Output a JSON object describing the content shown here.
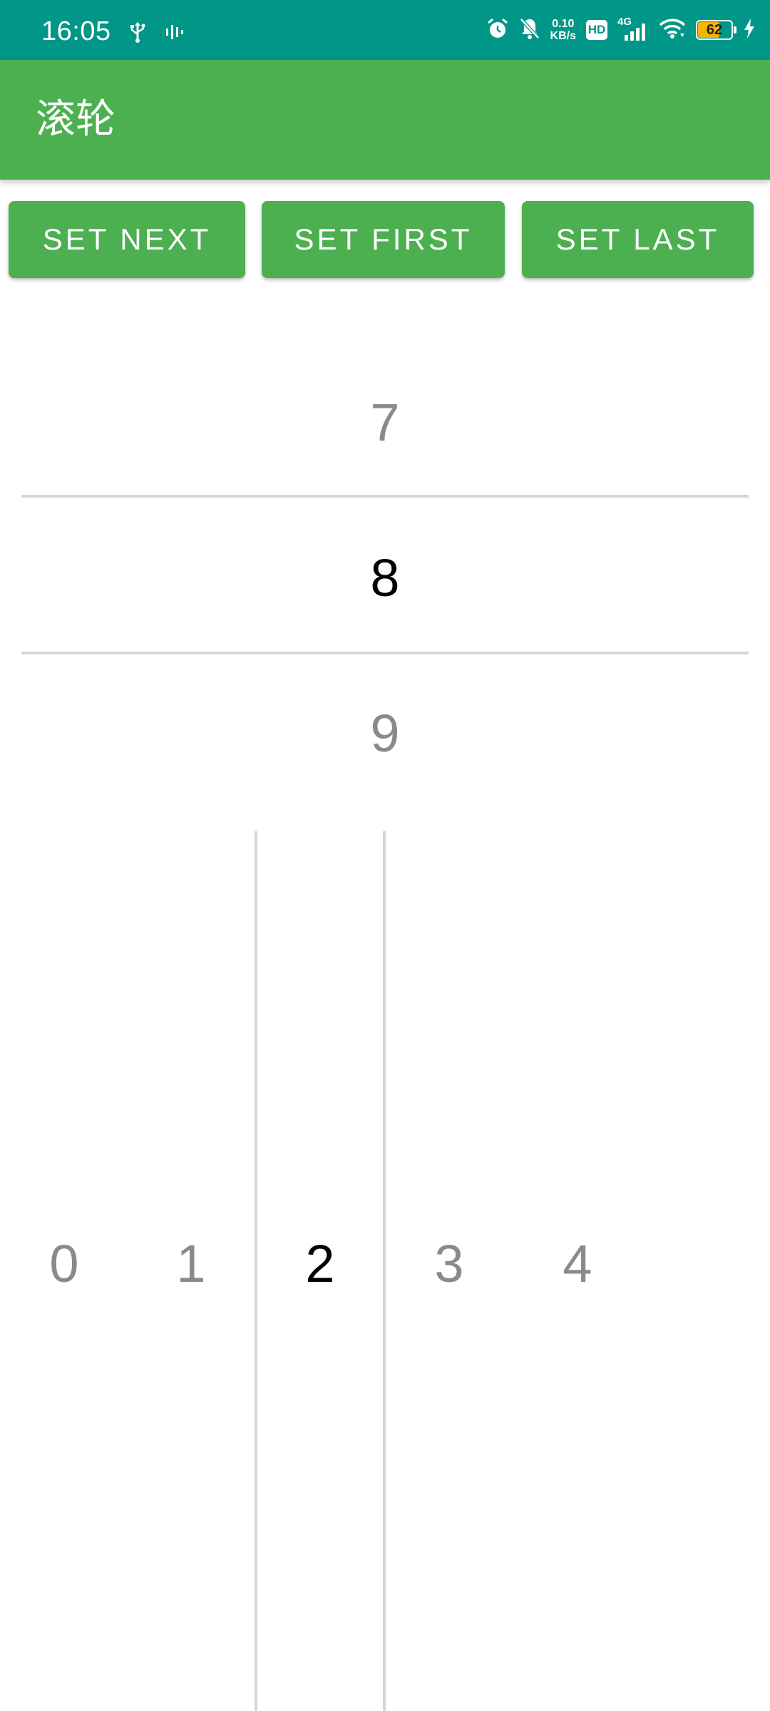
{
  "status_bar": {
    "time": "16:05",
    "net_speed_value": "0.10",
    "net_speed_unit": "KB/s",
    "hd_label": "HD",
    "network_label": "4G",
    "battery_level": "62",
    "background_color": "#009688"
  },
  "app_bar": {
    "title": "滚轮",
    "background_color": "#4caf50"
  },
  "buttons": {
    "set_next": "SET NEXT",
    "set_first": "SET FIRST",
    "set_last": "SET LAST"
  },
  "vertical_wheel": {
    "items": [
      "7",
      "8",
      "9"
    ],
    "selected": "8"
  },
  "horizontal_wheel": {
    "items": [
      "0",
      "1",
      "2",
      "3",
      "4"
    ],
    "selected": "2"
  }
}
